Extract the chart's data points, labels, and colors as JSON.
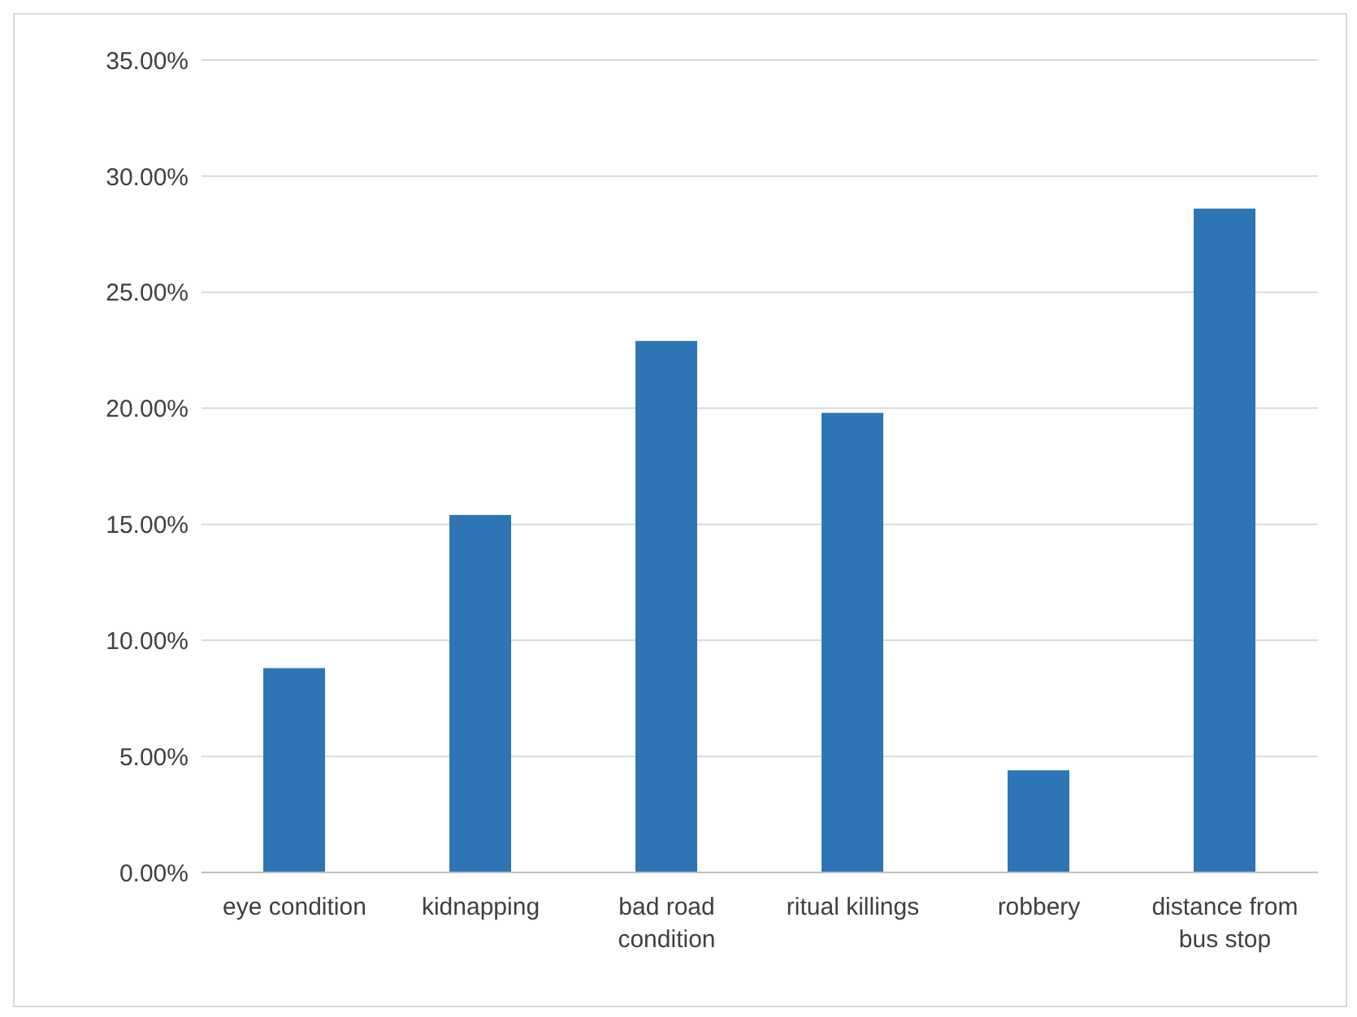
{
  "chart_data": {
    "type": "bar",
    "categories": [
      "eye condition",
      "kidnapping",
      "bad road condition",
      "ritual killings",
      "robbery",
      "distance from bus stop"
    ],
    "values": [
      8.8,
      15.4,
      22.9,
      19.8,
      4.4,
      28.6
    ],
    "color": "#2e75b6",
    "ylim": [
      0,
      35
    ],
    "yticks": [
      {
        "value": 0,
        "label": "0.00%"
      },
      {
        "value": 5,
        "label": "5.00%"
      },
      {
        "value": 10,
        "label": "10.00%"
      },
      {
        "value": 15,
        "label": "15.00%"
      },
      {
        "value": 20,
        "label": "20.00%"
      },
      {
        "value": 25,
        "label": "25.00%"
      },
      {
        "value": 30,
        "label": "30.00%"
      },
      {
        "value": 35,
        "label": "35.00%"
      }
    ],
    "grid": "y"
  }
}
